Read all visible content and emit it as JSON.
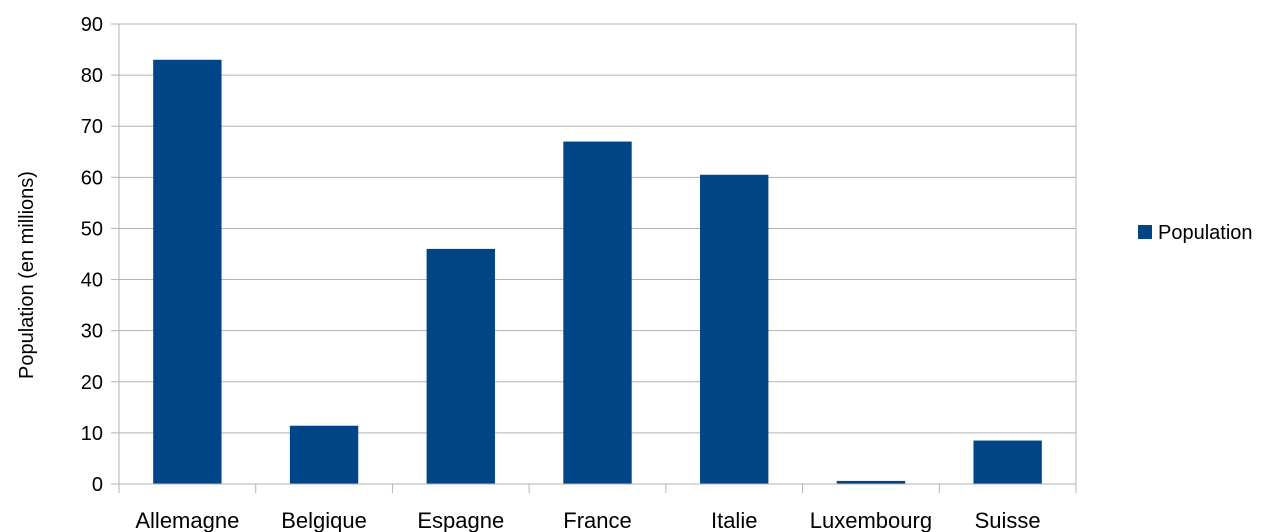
{
  "chart_data": {
    "type": "bar",
    "categories": [
      "Allemagne",
      "Belgique",
      "Espagne",
      "France",
      "Italie",
      "Luxembourg",
      "Suisse"
    ],
    "series": [
      {
        "name": "Population",
        "values": [
          83,
          11.4,
          46,
          67,
          60.5,
          0.6,
          8.5
        ]
      }
    ],
    "xlabel": "",
    "ylabel": "Population (en millions)",
    "ylim": [
      0,
      90
    ],
    "yticks": [
      0,
      10,
      20,
      30,
      40,
      50,
      60,
      70,
      80,
      90
    ],
    "grid": true,
    "legend_position": "right",
    "colors": {
      "bar": "#004586",
      "grid": "#b3b3b3",
      "axis": "#b3b3b3"
    }
  }
}
